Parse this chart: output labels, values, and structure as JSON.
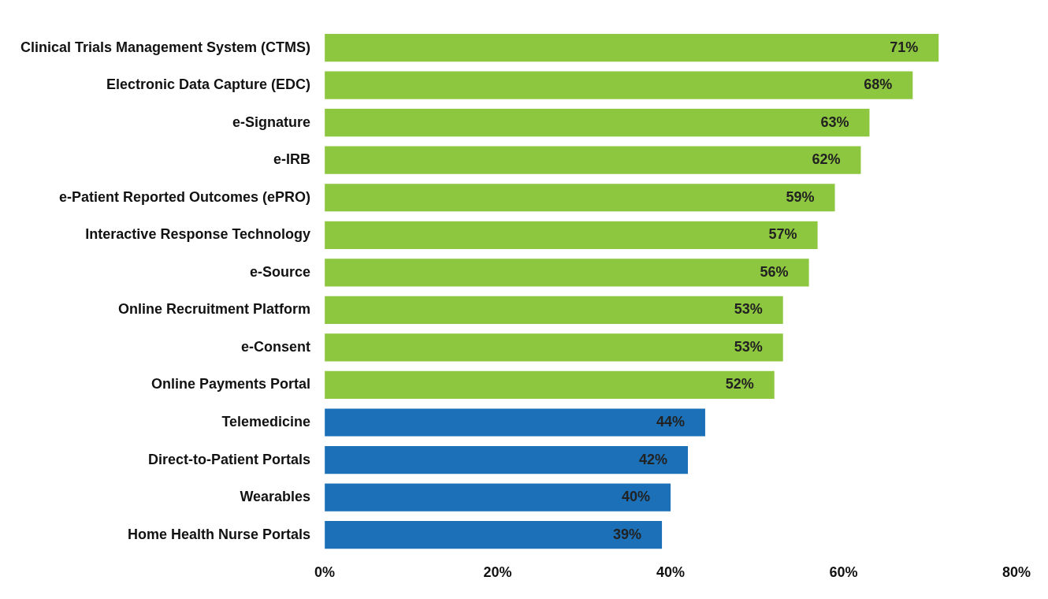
{
  "chart_data": {
    "type": "bar",
    "orientation": "horizontal",
    "categories": [
      "Clinical Trials Management System (CTMS)",
      "Electronic Data Capture (EDC)",
      "e-Signature",
      "e-IRB",
      "e-Patient Reported Outcomes (ePRO)",
      "Interactive Response Technology",
      "e-Source",
      "Online Recruitment Platform",
      "e-Consent",
      "Online Payments Portal",
      "Telemedicine",
      "Direct-to-Patient Portals",
      "Wearables",
      "Home Health Nurse Portals"
    ],
    "values": [
      71,
      68,
      63,
      62,
      59,
      57,
      56,
      53,
      53,
      52,
      44,
      42,
      40,
      39
    ],
    "value_labels": [
      "71%",
      "68%",
      "63%",
      "62%",
      "59%",
      "57%",
      "56%",
      "53%",
      "53%",
      "52%",
      "44%",
      "42%",
      "40%",
      "39%"
    ],
    "colors": [
      "#8dc63f",
      "#8dc63f",
      "#8dc63f",
      "#8dc63f",
      "#8dc63f",
      "#8dc63f",
      "#8dc63f",
      "#8dc63f",
      "#8dc63f",
      "#8dc63f",
      "#1b70b8",
      "#1b70b8",
      "#1b70b8",
      "#1b70b8"
    ],
    "xlim": [
      0,
      80
    ],
    "xticks": [
      {
        "value": 0,
        "label": "0%"
      },
      {
        "value": 20,
        "label": "20%"
      },
      {
        "value": 40,
        "label": "40%"
      },
      {
        "value": 60,
        "label": "60%"
      },
      {
        "value": 80,
        "label": "80%"
      }
    ],
    "grid": false,
    "legend": false
  }
}
